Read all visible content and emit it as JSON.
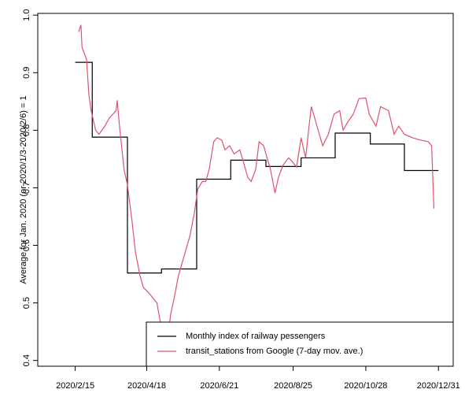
{
  "chart_data": {
    "type": "line",
    "ylabel": "Average for Jan. 2020 (or 2020/1/3-2020/2/6) = 1",
    "xlim": [
      "2020/1/13",
      "2021/1/13"
    ],
    "xticks": [
      "2020/2/15",
      "2020/4/18",
      "2020/6/21",
      "2020/8/25",
      "2020/10/28",
      "2020/12/31"
    ],
    "ylim": [
      0.39,
      1.003
    ],
    "yticks": [
      0.4,
      0.5,
      0.6,
      0.7,
      0.8,
      0.9,
      {
        "value": 1,
        "label": "1.0"
      }
    ],
    "legend": "bottomright",
    "series": [
      {
        "name": "Monthly index of railway pessengers",
        "color": "#000000",
        "step": "post",
        "x": [
          "2020/2/15",
          "2020/3/1",
          "2020/4/1",
          "2020/5/1",
          "2020/6/1",
          "2020/7/1",
          "2020/8/1",
          "2020/9/1",
          "2020/10/1",
          "2020/11/1",
          "2020/12/1",
          "2020/12/31"
        ],
        "values": [
          0.918,
          0.788,
          0.552,
          0.559,
          0.715,
          0.748,
          0.737,
          0.752,
          0.795,
          0.776,
          0.73,
          0.73
        ]
      },
      {
        "name": "transit_stations from Google (7-day mov. ave.)",
        "color": "#df536b",
        "step": null,
        "x": [
          "2020/2/18",
          "2020/2/20",
          "2020/2/21",
          "2020/2/25",
          "2020/2/27",
          "2020/2/29",
          "2020/3/4",
          "2020/3/7",
          "2020/3/12",
          "2020/3/16",
          "2020/3/22",
          "2020/3/23",
          "2020/3/25",
          "2020/3/29",
          "2020/4/1",
          "2020/4/5",
          "2020/4/8",
          "2020/4/12",
          "2020/4/15",
          "2020/4/20",
          "2020/4/24",
          "2020/4/27",
          "2020/4/30",
          "2020/5/2",
          "2020/5/4",
          "2020/5/7",
          "2020/5/9",
          "2020/5/12",
          "2020/5/16",
          "2020/5/21",
          "2020/5/26",
          "2020/5/30",
          "2020/6/2",
          "2020/6/6",
          "2020/6/9",
          "2020/6/12",
          "2020/6/16",
          "2020/6/19",
          "2020/6/23",
          "2020/6/26",
          "2020/6/30",
          "2020/7/4",
          "2020/7/9",
          "2020/7/12",
          "2020/7/16",
          "2020/7/19",
          "2020/7/23",
          "2020/7/26",
          "2020/7/30",
          "2020/8/2",
          "2020/8/5",
          "2020/8/9",
          "2020/8/12",
          "2020/8/16",
          "2020/8/21",
          "2020/8/24",
          "2020/8/28",
          "2020/9/1",
          "2020/9/5",
          "2020/9/8",
          "2020/9/10",
          "2020/9/13",
          "2020/9/16",
          "2020/9/20",
          "2020/9/25",
          "2020/9/30",
          "2020/10/5",
          "2020/10/8",
          "2020/10/12",
          "2020/10/17",
          "2020/10/22",
          "2020/10/28",
          "2020/10/31",
          "2020/11/6",
          "2020/11/10",
          "2020/11/17",
          "2020/11/22",
          "2020/11/26",
          "2020/12/1",
          "2020/12/8",
          "2020/12/15",
          "2020/12/22",
          "2020/12/25",
          "2020/12/27"
        ],
        "values": [
          0.971,
          0.983,
          0.944,
          0.923,
          0.862,
          0.834,
          0.8,
          0.793,
          0.807,
          0.821,
          0.834,
          0.852,
          0.807,
          0.732,
          0.705,
          0.643,
          0.589,
          0.548,
          0.527,
          0.517,
          0.507,
          0.5,
          0.466,
          0.438,
          0.425,
          0.445,
          0.479,
          0.507,
          0.548,
          0.582,
          0.616,
          0.657,
          0.698,
          0.711,
          0.711,
          0.732,
          0.78,
          0.787,
          0.783,
          0.766,
          0.773,
          0.759,
          0.766,
          0.746,
          0.718,
          0.711,
          0.732,
          0.78,
          0.773,
          0.752,
          0.732,
          0.691,
          0.718,
          0.739,
          0.752,
          0.746,
          0.736,
          0.787,
          0.752,
          0.807,
          0.841,
          0.821,
          0.8,
          0.773,
          0.793,
          0.828,
          0.834,
          0.8,
          0.814,
          0.828,
          0.855,
          0.856,
          0.828,
          0.807,
          0.841,
          0.834,
          0.793,
          0.807,
          0.793,
          0.787,
          0.783,
          0.78,
          0.773,
          0.664
        ]
      }
    ]
  }
}
